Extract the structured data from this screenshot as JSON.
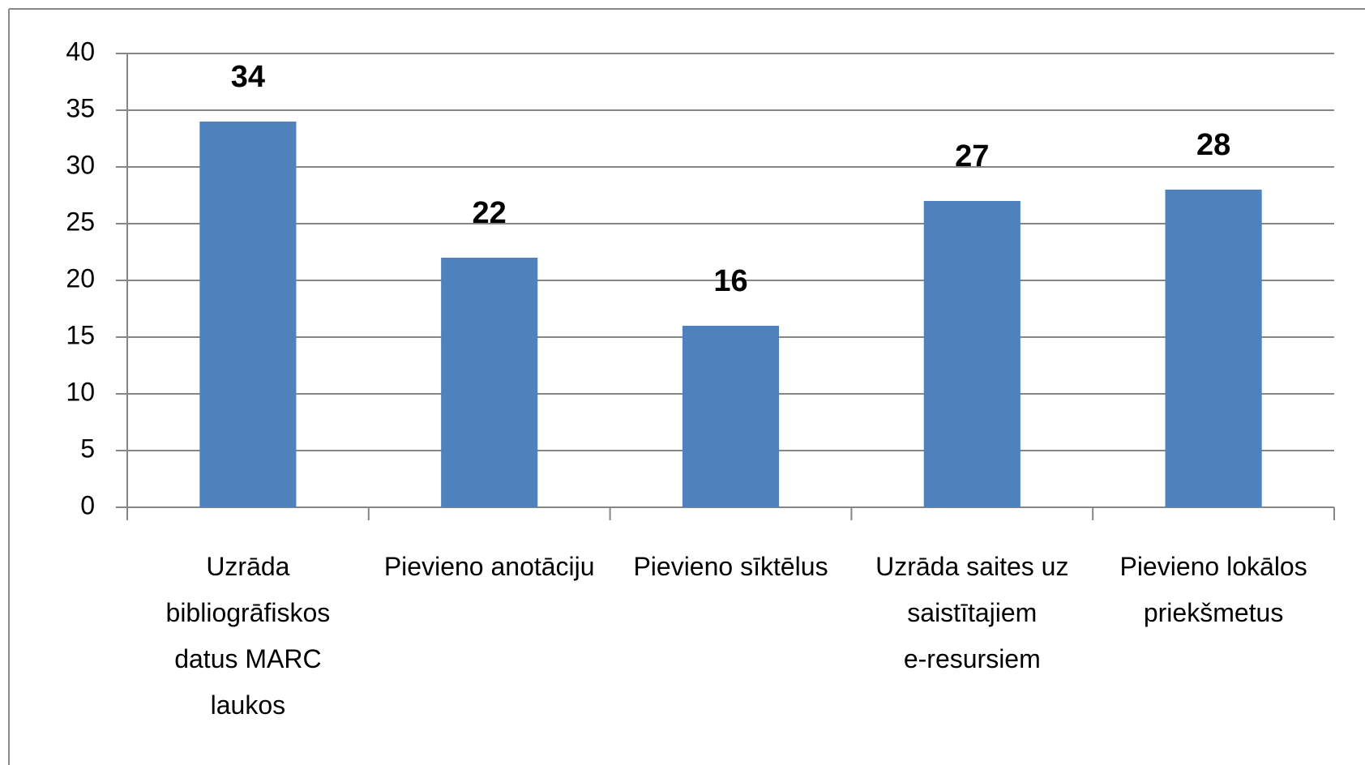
{
  "chart_data": {
    "type": "bar",
    "categories": [
      "Uzrāda bibliogrāfiskos datus MARC laukos",
      "Pievieno anotāciju",
      "Pievieno sīktēlus",
      "Uzrāda saites uz saistītajiem e-resursiem",
      "Pievieno lokālos priekšmetus"
    ],
    "values": [
      34,
      22,
      16,
      27,
      28
    ],
    "color": "#4f81bd",
    "ylim": [
      0,
      40
    ],
    "yticks": [
      0,
      5,
      10,
      15,
      20,
      25,
      30,
      35,
      40
    ],
    "grid": true
  }
}
